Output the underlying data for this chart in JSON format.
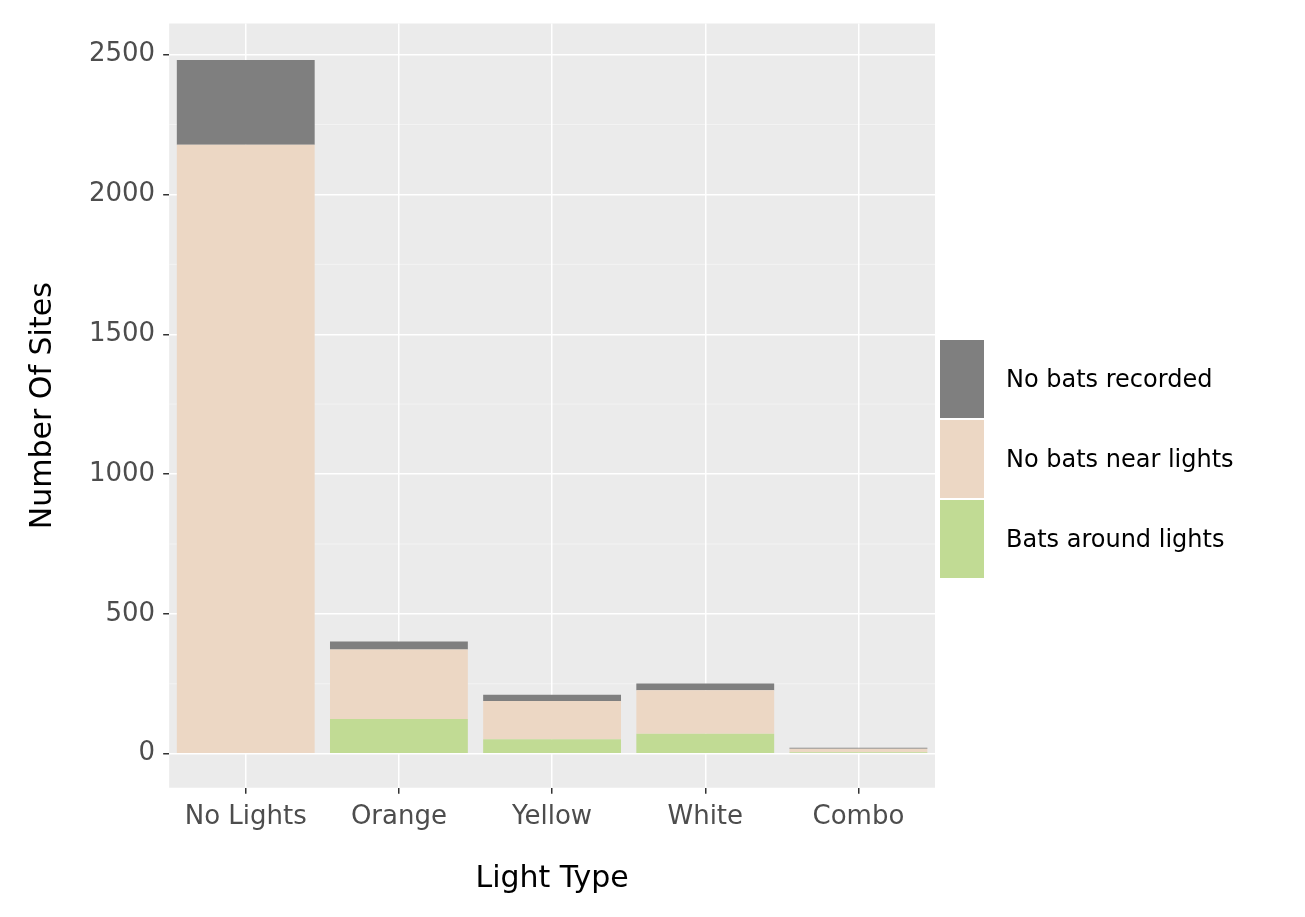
{
  "chart_data": {
    "type": "bar",
    "stacked": true,
    "xlabel": "Light Type",
    "ylabel": "Number Of Sites",
    "categories": [
      "No Lights",
      "Orange",
      "Yellow",
      "White",
      "Combo"
    ],
    "series": [
      {
        "name": "Bats around lights",
        "color": "#c1db94",
        "values": [
          0,
          124,
          52,
          71,
          5
        ]
      },
      {
        "name": "No bats near lights",
        "color": "#ecd7c4",
        "values": [
          2178,
          249,
          136,
          156,
          13
        ]
      },
      {
        "name": "No bats recorded",
        "color": "#7f7f7f",
        "values": [
          303,
          28,
          23,
          24,
          3
        ]
      }
    ],
    "ylim": [
      -122,
      2611
    ],
    "yticks": [
      0,
      500,
      1000,
      1500,
      2000,
      2500
    ],
    "grid": true,
    "legend": "right"
  }
}
